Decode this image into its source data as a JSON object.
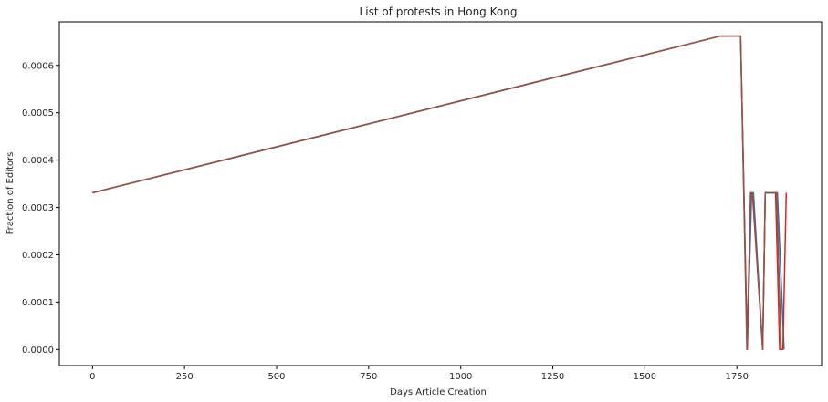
{
  "chart_data": {
    "type": "line",
    "title": "List of protests in Hong Kong",
    "xlabel": "Days Article Creation",
    "ylabel": "Fraction of Editors",
    "xlim": [
      -90,
      1980
    ],
    "ylim": [
      -3.4e-05,
      0.000692
    ],
    "xticks": [
      0,
      250,
      500,
      750,
      1000,
      1250,
      1500,
      1750
    ],
    "xtick_labels": [
      "0",
      "250",
      "500",
      "750",
      "1000",
      "1250",
      "1500",
      "1750"
    ],
    "yticks": [
      0,
      0.0001,
      0.0002,
      0.0003,
      0.0004,
      0.0005,
      0.0006
    ],
    "ytick_labels": [
      "0.0000",
      "0.0001",
      "0.0002",
      "0.0003",
      "0.0004",
      "0.0005",
      "0.0006"
    ],
    "grid": false,
    "colors": {
      "series_1": "#1f77b4",
      "series_2": "#d62728",
      "series_3": "#8c564b"
    },
    "series": [
      {
        "x": [
          0,
          1705,
          1760,
          1778,
          1790,
          1795,
          1820,
          1827,
          1860,
          1878
        ],
        "y": [
          0.000331,
          0.000662,
          0.000662,
          0.0,
          0.000331,
          0.000331,
          0.0,
          0.000331,
          0.000331,
          0.0
        ]
      },
      {
        "x": [
          0,
          1705,
          1760,
          1778,
          1787,
          1792,
          1820,
          1827,
          1855,
          1866,
          1875,
          1884
        ],
        "y": [
          0.000331,
          0.000662,
          0.000662,
          0.0,
          0.000331,
          0.000331,
          0.0,
          0.000331,
          0.000331,
          0.0,
          0.0,
          0.000331
        ]
      },
      {
        "x": [
          0,
          1705,
          1760,
          1777,
          1788,
          1793,
          1820,
          1827,
          1858,
          1870
        ],
        "y": [
          0.000331,
          0.000662,
          0.000662,
          0.0,
          0.000331,
          0.000331,
          0.0,
          0.000331,
          0.000331,
          0.0
        ]
      }
    ]
  }
}
